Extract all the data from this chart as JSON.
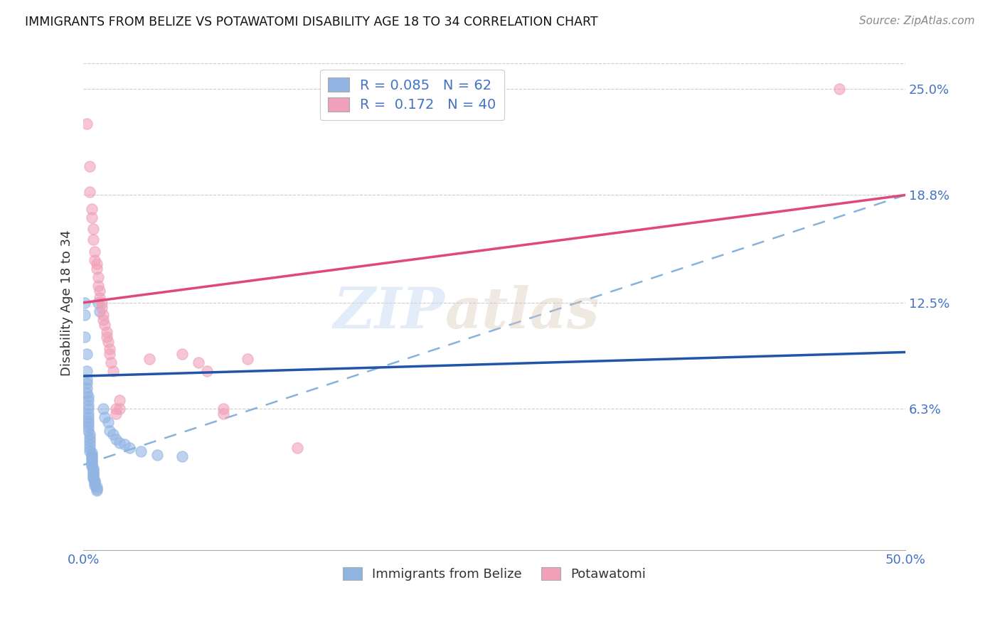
{
  "title": "IMMIGRANTS FROM BELIZE VS POTAWATOMI DISABILITY AGE 18 TO 34 CORRELATION CHART",
  "source": "Source: ZipAtlas.com",
  "ylabel": "Disability Age 18 to 34",
  "ytick_labels": [
    "6.3%",
    "12.5%",
    "18.8%",
    "25.0%"
  ],
  "ytick_values": [
    0.063,
    0.125,
    0.188,
    0.25
  ],
  "xlim": [
    0.0,
    0.5
  ],
  "ylim": [
    -0.02,
    0.27
  ],
  "legend_blue_r": "R = 0.085",
  "legend_blue_n": "N = 62",
  "legend_pink_r": "R =  0.172",
  "legend_pink_n": "N = 40",
  "legend_label_blue": "Immigrants from Belize",
  "legend_label_pink": "Potawatomi",
  "watermark": "ZIPatlas",
  "blue_color": "#92b4e3",
  "pink_color": "#f0a0b8",
  "blue_line_color": "#2255aa",
  "pink_line_color": "#e04878",
  "dash_line_color": "#7aaad8",
  "blue_scatter": [
    [
      0.001,
      0.125
    ],
    [
      0.001,
      0.118
    ],
    [
      0.001,
      0.105
    ],
    [
      0.002,
      0.095
    ],
    [
      0.002,
      0.085
    ],
    [
      0.002,
      0.08
    ],
    [
      0.002,
      0.078
    ],
    [
      0.002,
      0.075
    ],
    [
      0.002,
      0.072
    ],
    [
      0.003,
      0.07
    ],
    [
      0.003,
      0.068
    ],
    [
      0.003,
      0.065
    ],
    [
      0.003,
      0.063
    ],
    [
      0.003,
      0.06
    ],
    [
      0.003,
      0.058
    ],
    [
      0.003,
      0.056
    ],
    [
      0.003,
      0.054
    ],
    [
      0.003,
      0.052
    ],
    [
      0.003,
      0.05
    ],
    [
      0.004,
      0.048
    ],
    [
      0.004,
      0.046
    ],
    [
      0.004,
      0.044
    ],
    [
      0.004,
      0.042
    ],
    [
      0.004,
      0.04
    ],
    [
      0.004,
      0.038
    ],
    [
      0.005,
      0.037
    ],
    [
      0.005,
      0.036
    ],
    [
      0.005,
      0.035
    ],
    [
      0.005,
      0.034
    ],
    [
      0.005,
      0.033
    ],
    [
      0.005,
      0.032
    ],
    [
      0.005,
      0.031
    ],
    [
      0.005,
      0.03
    ],
    [
      0.005,
      0.029
    ],
    [
      0.006,
      0.028
    ],
    [
      0.006,
      0.027
    ],
    [
      0.006,
      0.026
    ],
    [
      0.006,
      0.025
    ],
    [
      0.006,
      0.024
    ],
    [
      0.006,
      0.023
    ],
    [
      0.006,
      0.022
    ],
    [
      0.007,
      0.021
    ],
    [
      0.007,
      0.02
    ],
    [
      0.007,
      0.019
    ],
    [
      0.007,
      0.018
    ],
    [
      0.008,
      0.017
    ],
    [
      0.008,
      0.016
    ],
    [
      0.008,
      0.015
    ],
    [
      0.009,
      0.125
    ],
    [
      0.01,
      0.12
    ],
    [
      0.012,
      0.063
    ],
    [
      0.013,
      0.058
    ],
    [
      0.015,
      0.055
    ],
    [
      0.016,
      0.05
    ],
    [
      0.018,
      0.048
    ],
    [
      0.02,
      0.045
    ],
    [
      0.022,
      0.043
    ],
    [
      0.025,
      0.042
    ],
    [
      0.028,
      0.04
    ],
    [
      0.035,
      0.038
    ],
    [
      0.045,
      0.036
    ],
    [
      0.06,
      0.035
    ]
  ],
  "pink_scatter": [
    [
      0.002,
      0.23
    ],
    [
      0.004,
      0.205
    ],
    [
      0.004,
      0.19
    ],
    [
      0.005,
      0.18
    ],
    [
      0.005,
      0.175
    ],
    [
      0.006,
      0.168
    ],
    [
      0.006,
      0.162
    ],
    [
      0.007,
      0.155
    ],
    [
      0.007,
      0.15
    ],
    [
      0.008,
      0.148
    ],
    [
      0.008,
      0.145
    ],
    [
      0.009,
      0.14
    ],
    [
      0.009,
      0.135
    ],
    [
      0.01,
      0.132
    ],
    [
      0.01,
      0.128
    ],
    [
      0.011,
      0.125
    ],
    [
      0.011,
      0.122
    ],
    [
      0.012,
      0.118
    ],
    [
      0.012,
      0.115
    ],
    [
      0.013,
      0.112
    ],
    [
      0.014,
      0.108
    ],
    [
      0.014,
      0.105
    ],
    [
      0.015,
      0.102
    ],
    [
      0.016,
      0.098
    ],
    [
      0.016,
      0.095
    ],
    [
      0.017,
      0.09
    ],
    [
      0.018,
      0.085
    ],
    [
      0.02,
      0.063
    ],
    [
      0.02,
      0.06
    ],
    [
      0.022,
      0.068
    ],
    [
      0.022,
      0.063
    ],
    [
      0.04,
      0.092
    ],
    [
      0.06,
      0.095
    ],
    [
      0.07,
      0.09
    ],
    [
      0.075,
      0.085
    ],
    [
      0.085,
      0.063
    ],
    [
      0.085,
      0.06
    ],
    [
      0.1,
      0.092
    ],
    [
      0.13,
      0.04
    ],
    [
      0.46,
      0.25
    ]
  ],
  "blue_trend": [
    0.0,
    0.5,
    0.082,
    0.096
  ],
  "pink_trend": [
    0.0,
    0.5,
    0.125,
    0.188
  ],
  "dash_trend": [
    0.0,
    0.5,
    0.03,
    0.188
  ]
}
